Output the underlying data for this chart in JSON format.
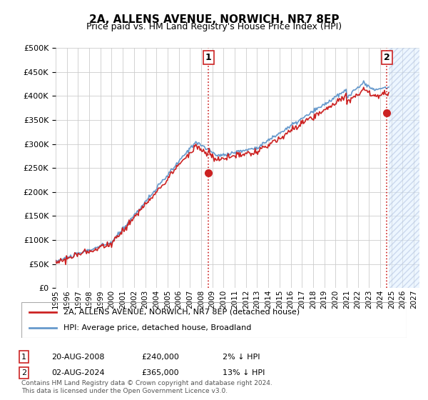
{
  "title": "2A, ALLENS AVENUE, NORWICH, NR7 8EP",
  "subtitle": "Price paid vs. HM Land Registry's House Price Index (HPI)",
  "ylabel_ticks": [
    "£0",
    "£50K",
    "£100K",
    "£150K",
    "£200K",
    "£250K",
    "£300K",
    "£350K",
    "£400K",
    "£450K",
    "£500K"
  ],
  "ytick_values": [
    0,
    50000,
    100000,
    150000,
    200000,
    250000,
    300000,
    350000,
    400000,
    450000,
    500000
  ],
  "ylim": [
    0,
    500000
  ],
  "xlim_start": 1995.0,
  "xlim_end": 2027.5,
  "hpi_color": "#6699cc",
  "price_color": "#cc2222",
  "sale1_x": 2008.64,
  "sale1_y": 240000,
  "sale1_label": "1",
  "sale2_x": 2024.59,
  "sale2_y": 365000,
  "sale2_label": "2",
  "vline_color": "#cc2222",
  "vline_style": "dotted",
  "legend_line1": "2A, ALLENS AVENUE, NORWICH, NR7 8EP (detached house)",
  "legend_line2": "HPI: Average price, detached house, Broadland",
  "table_row1": [
    "1",
    "20-AUG-2008",
    "£240,000",
    "2% ↓ HPI"
  ],
  "table_row2": [
    "2",
    "02-AUG-2024",
    "£365,000",
    "13% ↓ HPI"
  ],
  "footnote": "Contains HM Land Registry data © Crown copyright and database right 2024.\nThis data is licensed under the Open Government Licence v3.0.",
  "bg_color": "#ffffff",
  "grid_color": "#cccccc",
  "xticks": [
    1995,
    1996,
    1997,
    1998,
    1999,
    2000,
    2001,
    2002,
    2003,
    2004,
    2005,
    2006,
    2007,
    2008,
    2009,
    2010,
    2011,
    2012,
    2013,
    2014,
    2015,
    2016,
    2017,
    2018,
    2019,
    2020,
    2021,
    2022,
    2023,
    2024,
    2025,
    2026,
    2027
  ],
  "hatch_color": "#aabbdd",
  "hatch_end": 2027.5,
  "hatch_start": 2024.75
}
